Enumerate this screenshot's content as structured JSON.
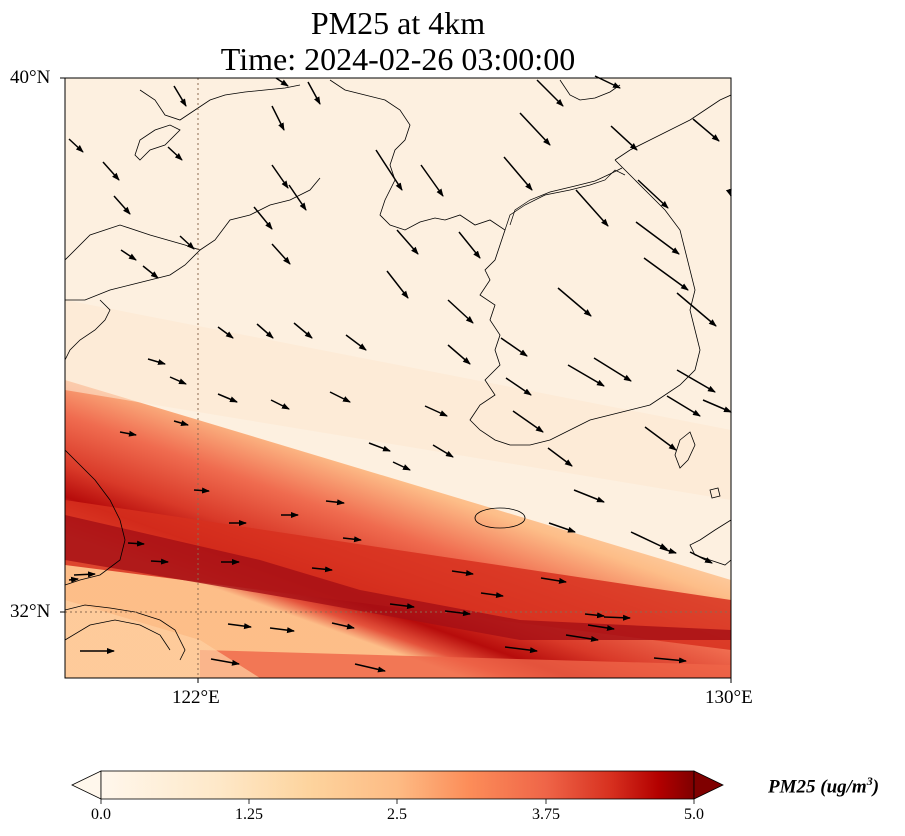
{
  "title": {
    "line1": "PM25 at 4km",
    "line2": "Time: 2024-02-26 03:00:00"
  },
  "axes": {
    "lat_ticks": [
      "40°N",
      "32°N"
    ],
    "lon_ticks": [
      "122°E",
      "130°E"
    ],
    "lon_range": [
      120,
      130
    ],
    "lat_range": [
      31,
      40
    ],
    "gridlines": "dotted at 122°E and 32°N"
  },
  "colorbar": {
    "colormap": "OrRd",
    "range": [
      0.0,
      5.0
    ],
    "ticks": [
      "0.0",
      "1.25",
      "2.5",
      "3.75",
      "5.0"
    ],
    "label_main": "PM25 (ug/m",
    "label_sup": "3",
    "label_end": ")",
    "extend": "both"
  },
  "colors": {
    "low": "#fff7ec",
    "mid": "#fdbb84",
    "high": "#d7301f",
    "max": "#7f0000"
  }
}
